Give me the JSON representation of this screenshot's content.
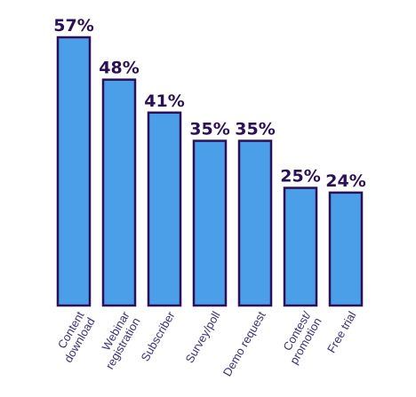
{
  "chart_data": {
    "type": "bar",
    "categories": [
      [
        "Content",
        "download"
      ],
      [
        "Webinar",
        "registration"
      ],
      [
        "Subscriber"
      ],
      [
        "Survey/poll"
      ],
      [
        "Demo request"
      ],
      [
        "Contest/",
        "promotion"
      ],
      [
        "Free trial"
      ]
    ],
    "values": [
      57,
      48,
      41,
      35,
      35,
      25,
      24
    ],
    "value_labels": [
      "57%",
      "48%",
      "41%",
      "35%",
      "35%",
      "25%",
      "24%"
    ],
    "title": "",
    "xlabel": "",
    "ylabel": "",
    "ylim": [
      0,
      57
    ],
    "grid": false,
    "legend": "none",
    "colors": {
      "bar_fill": "#4a9fe8",
      "bar_stroke": "#2b0f57",
      "value_text": "#2b0f57",
      "category_text": "#3b2f7a"
    }
  }
}
